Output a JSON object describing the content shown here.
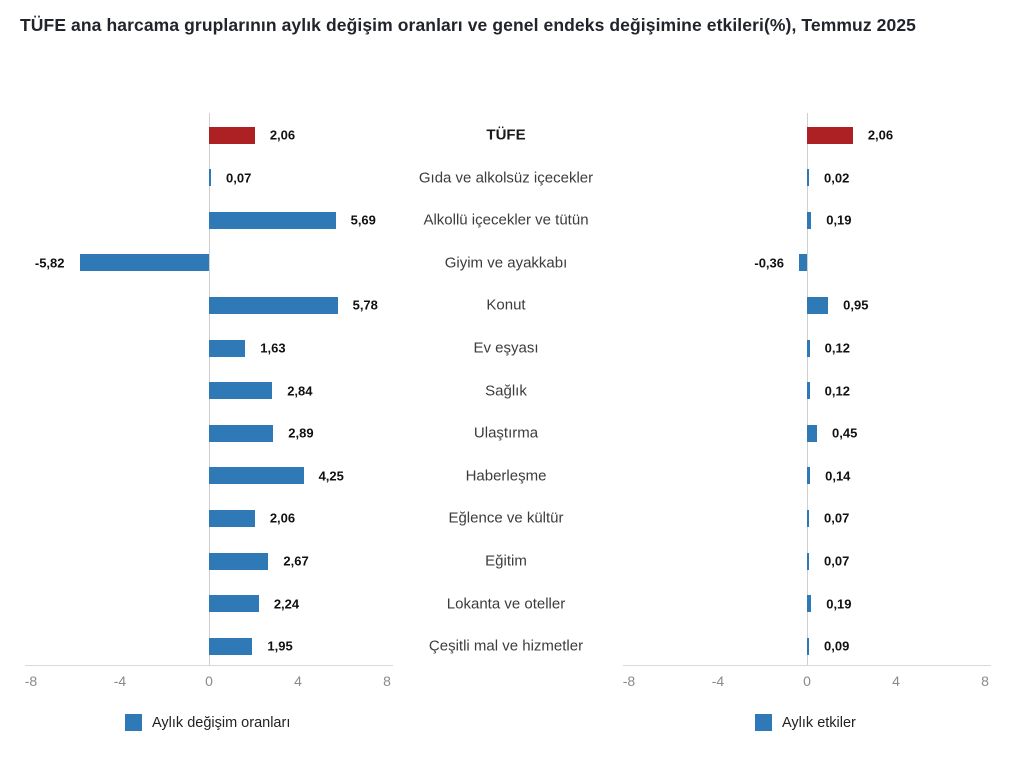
{
  "title": "TÜFE ana harcama gruplarının aylık değişim oranları ve genel endeks değişimine etkileri(%), Temmuz 2025",
  "chart_data": {
    "type": "bar",
    "orientation": "horizontal",
    "categories": [
      "TÜFE",
      "Gıda ve alkolsüz içecekler",
      "Alkollü içecekler ve tütün",
      "Giyim ve ayakkabı",
      "Konut",
      "Ev eşyası",
      "Sağlık",
      "Ulaştırma",
      "Haberleşme",
      "Eğlence ve kültür",
      "Eğitim",
      "Lokanta ve oteller",
      "Çeşitli mal ve hizmetler"
    ],
    "series": [
      {
        "name": "Aylık değişim oranları",
        "values": [
          2.06,
          0.07,
          5.69,
          -5.82,
          5.78,
          1.63,
          2.84,
          2.89,
          4.25,
          2.06,
          2.67,
          2.24,
          1.95
        ]
      },
      {
        "name": "Aylık etkiler",
        "values": [
          2.06,
          0.02,
          0.19,
          -0.36,
          0.95,
          0.12,
          0.12,
          0.45,
          0.14,
          0.07,
          0.07,
          0.19,
          0.09
        ]
      }
    ],
    "xlim": [
      -8,
      8
    ],
    "xticks": [
      -8,
      -4,
      0,
      4,
      8
    ],
    "decimal_separator": ",",
    "bar_color": "#2e79b6",
    "highlight_color": "#ad2024",
    "highlight_index": 0,
    "legend_position": "bottom"
  }
}
